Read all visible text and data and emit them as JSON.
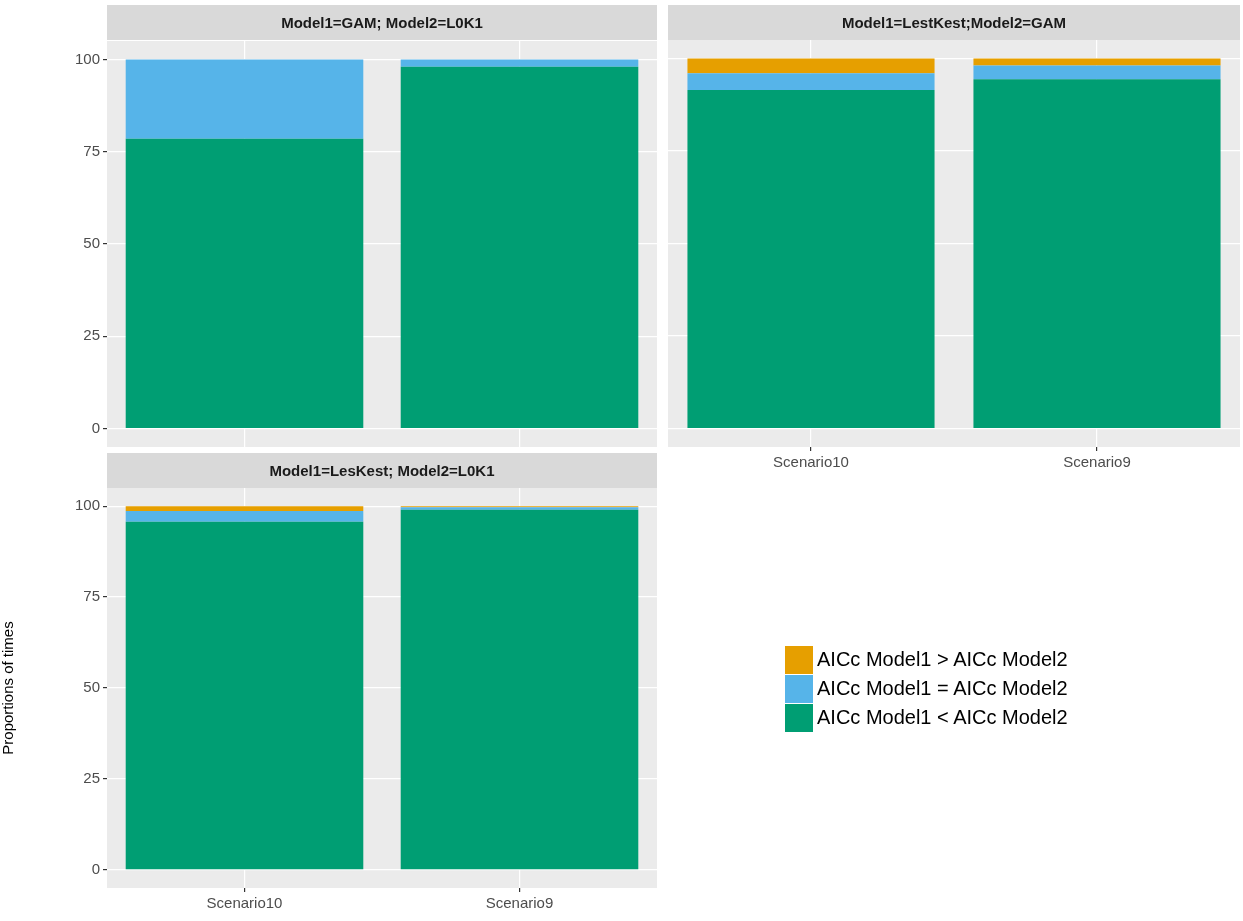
{
  "chart_data": [
    {
      "type": "bar",
      "title": "Model1=GAM; Model2=L0K1",
      "categories": [
        null,
        null
      ],
      "stacked": true,
      "ylim": [
        -5,
        105
      ],
      "yticks": [
        0,
        25,
        50,
        75,
        100
      ],
      "grid": true,
      "tick_labels": "y",
      "series": [
        {
          "color": "#009e73",
          "values": [
            78.5,
            98
          ]
        },
        {
          "color": "#56b4e9",
          "values": [
            21.5,
            2
          ]
        }
      ]
    },
    {
      "type": "bar",
      "title": "Model1=LestKest;Model2=GAM",
      "categories": [
        "Scenario10",
        "Scenario9"
      ],
      "stacked": true,
      "ylim": [
        -5,
        105
      ],
      "yticks": [
        0,
        25,
        50,
        75,
        100
      ],
      "grid": true,
      "tick_labels": "x",
      "series": [
        {
          "color": "#009e73",
          "values": [
            91.5,
            94.4
          ]
        },
        {
          "color": "#56b4e9",
          "values": [
            4.5,
            3.7
          ]
        },
        {
          "color": "#e69f00",
          "values": [
            4,
            1.9
          ]
        }
      ]
    },
    {
      "type": "bar",
      "title": "Model1=LesKest; Model2=L0K1",
      "ylabel": "Proportions of times",
      "categories": [
        "Scenario10",
        "Scenario9"
      ],
      "stacked": true,
      "ylim": [
        -5,
        105
      ],
      "yticks": [
        0,
        25,
        50,
        75,
        100
      ],
      "grid": true,
      "legend": "right",
      "series": [
        {
          "name": "AICc Model1 < AICc Model2",
          "color": "#009e73",
          "values": [
            95.7,
            99
          ]
        },
        {
          "name": "AICc Model1 = AICc Model2",
          "color": "#56b4e9",
          "values": [
            3,
            0.7
          ]
        },
        {
          "name": "AICc Model1 > AICc Model2",
          "color": "#e69f00",
          "values": [
            1.3,
            0.3
          ]
        }
      ]
    }
  ]
}
